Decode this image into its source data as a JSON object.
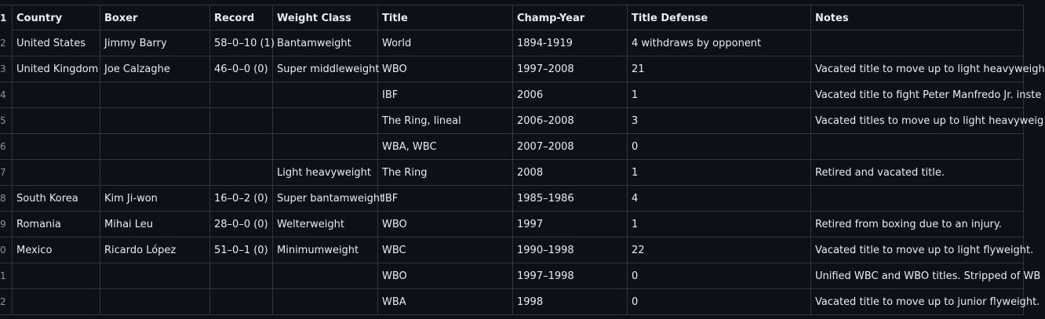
{
  "table": {
    "columns": [
      "Country",
      "Boxer",
      "Record",
      "Weight Class",
      "Title",
      "Champ-Year",
      "Title Defense",
      "Notes"
    ],
    "header_row_num": "1",
    "rows": [
      {
        "num": "2",
        "cells": [
          "United States",
          "Jimmy Barry",
          "58–0–10 (1)",
          "Bantamweight",
          "World",
          "1894-1919",
          "4 withdraws by opponent",
          ""
        ]
      },
      {
        "num": "3",
        "cells": [
          "United Kingdom",
          "Joe Calzaghe",
          "46–0–0 (0)",
          "Super middleweight",
          "WBO",
          "1997–2008",
          "21",
          "Vacated title to move up to light heavyweigh"
        ]
      },
      {
        "num": "4",
        "cells": [
          "",
          "",
          "",
          "",
          "IBF",
          "2006",
          "1",
          "Vacated title to fight Peter Manfredo Jr. inste"
        ]
      },
      {
        "num": "5",
        "cells": [
          "",
          "",
          "",
          "",
          "The Ring, lineal",
          "2006–2008",
          "3",
          "Vacated titles to move up to light heavyweig"
        ]
      },
      {
        "num": "6",
        "cells": [
          "",
          "",
          "",
          "",
          "WBA, WBC",
          "2007–2008",
          "0",
          ""
        ]
      },
      {
        "num": "7",
        "cells": [
          "",
          "",
          "",
          "Light heavyweight",
          "The Ring",
          "2008",
          "1",
          "Retired and vacated title."
        ]
      },
      {
        "num": "8",
        "cells": [
          "South Korea",
          "Kim Ji-won",
          "16–0–2 (0)",
          "Super bantamweight",
          "IBF",
          "1985–1986",
          "4",
          ""
        ]
      },
      {
        "num": "9",
        "cells": [
          "Romania",
          "Mihai Leu",
          "28–0–0 (0)",
          "Welterweight",
          "WBO",
          "1997",
          "1",
          "Retired from boxing due to an injury."
        ]
      },
      {
        "num": "0",
        "cells": [
          "Mexico",
          "Ricardo López",
          "51–0–1 (0)",
          "Minimumweight",
          "WBC",
          "1990–1998",
          "22",
          "Vacated title to move up to light flyweight."
        ]
      },
      {
        "num": "1",
        "cells": [
          "",
          "",
          "",
          "",
          "WBO",
          "1997–1998",
          "0",
          "Unified WBC and WBO titles. Stripped of WB"
        ]
      },
      {
        "num": "2",
        "cells": [
          "",
          "",
          "",
          "",
          "WBA",
          "1998",
          "0",
          "Vacated title to move up to junior flyweight."
        ]
      }
    ]
  }
}
